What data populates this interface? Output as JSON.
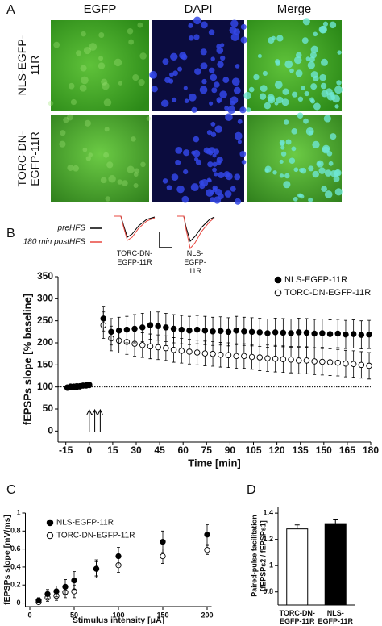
{
  "panels": [
    "A",
    "B",
    "C",
    "D"
  ],
  "image_panel": {
    "columns": [
      "EGFP",
      "DAPI",
      "Merge"
    ],
    "rows": [
      "NLS-EGFP-11R",
      "TORC-DN-EGFP-11R"
    ]
  },
  "chart_data": [
    {
      "type": "scatter",
      "xlabel": "Time [min]",
      "ylabel": "fEPSPs slope [% baseline]",
      "xlim": [
        -20,
        180
      ],
      "xticks": [
        -15,
        0,
        15,
        30,
        45,
        60,
        75,
        90,
        105,
        120,
        135,
        150,
        165,
        180
      ],
      "ylim": [
        -25,
        350
      ],
      "yticks": [
        0,
        50,
        100,
        150,
        200,
        250,
        300,
        350
      ],
      "legend": "upper right",
      "reference_line": 100,
      "hfs_times": [
        0,
        3.5,
        7
      ],
      "inset": {
        "trace_labels": [
          "preHFS",
          "180 min postHFS"
        ],
        "trace_colors": [
          "#000000",
          "#e8473f"
        ],
        "groups": [
          "TORC-DN-EGFP-11R",
          "NLS-EGFP-11R"
        ]
      },
      "x": [
        -14,
        -12,
        -10,
        -8,
        -6,
        -4,
        -2,
        0,
        9,
        14,
        19,
        24,
        29,
        34,
        39,
        44,
        49,
        54,
        59,
        64,
        69,
        74,
        79,
        84,
        89,
        94,
        99,
        104,
        109,
        114,
        119,
        124,
        129,
        134,
        139,
        144,
        149,
        154,
        159,
        164,
        169,
        174,
        179
      ],
      "series": [
        {
          "name": "NLS-EGFP-11R",
          "color": "#000000",
          "values": [
            98,
            100,
            101,
            100,
            102,
            103,
            104,
            105,
            255,
            225,
            228,
            230,
            232,
            235,
            240,
            238,
            235,
            232,
            230,
            228,
            230,
            228,
            226,
            227,
            225,
            228,
            226,
            225,
            224,
            222,
            224,
            223,
            222,
            224,
            223,
            221,
            222,
            220,
            221,
            219,
            220,
            218,
            219
          ],
          "errors": [
            4,
            4,
            4,
            4,
            4,
            4,
            5,
            5,
            28,
            30,
            30,
            30,
            32,
            32,
            32,
            32,
            32,
            32,
            32,
            32,
            32,
            32,
            32,
            32,
            32,
            32,
            32,
            32,
            32,
            32,
            32,
            32,
            32,
            32,
            32,
            32,
            32,
            32,
            32,
            32,
            32,
            32,
            32
          ]
        },
        {
          "name": "TORC-DN-EGFP-11R",
          "color": "#ffffff",
          "values": [
            99,
            101,
            100,
            102,
            101,
            103,
            103,
            104,
            240,
            210,
            205,
            202,
            198,
            195,
            192,
            190,
            188,
            184,
            182,
            180,
            178,
            176,
            175,
            173,
            172,
            170,
            170,
            168,
            167,
            165,
            164,
            163,
            162,
            160,
            160,
            158,
            157,
            156,
            155,
            153,
            152,
            150,
            148
          ],
          "errors": [
            4,
            4,
            4,
            4,
            4,
            4,
            5,
            5,
            30,
            28,
            28,
            28,
            28,
            28,
            28,
            28,
            28,
            28,
            28,
            28,
            28,
            28,
            28,
            28,
            28,
            28,
            28,
            28,
            30,
            30,
            30,
            30,
            30,
            30,
            30,
            30,
            30,
            30,
            30,
            30,
            30,
            30,
            30
          ]
        }
      ]
    },
    {
      "type": "scatter",
      "xlabel": "Stimulus intensity [μA]",
      "ylabel": "fEPSPs slope [mV/ms]",
      "xlim": [
        -5,
        205
      ],
      "xticks": [
        0,
        50,
        100,
        150,
        200
      ],
      "ylim": [
        -0.04,
        1.0
      ],
      "yticks": [
        0,
        0.2,
        0.4,
        0.6,
        0.8,
        1
      ],
      "legend": "upper left",
      "x": [
        10,
        20,
        30,
        40,
        50,
        75,
        100,
        150,
        200
      ],
      "series": [
        {
          "name": "NLS-EGFP-11R",
          "color": "#000000",
          "values": [
            0.03,
            0.1,
            0.13,
            0.18,
            0.25,
            0.38,
            0.52,
            0.68,
            0.76
          ],
          "errors": [
            0.03,
            0.05,
            0.06,
            0.08,
            0.1,
            0.1,
            0.1,
            0.12,
            0.11
          ]
        },
        {
          "name": "TORC-DN-EGFP-11R",
          "color": "#ffffff",
          "values": [
            0.01,
            0.06,
            0.08,
            0.12,
            0.13,
            0.38,
            0.42,
            0.52,
            0.59
          ],
          "errors": [
            0.02,
            0.04,
            0.05,
            0.06,
            0.07,
            0.08,
            0.08,
            0.08,
            0.05
          ]
        }
      ]
    },
    {
      "type": "bar",
      "ylabel": [
        "Paired-pulse facilitation",
        "[fEPSPs2 / fEPSPs1]"
      ],
      "ylim": [
        0.7,
        1.45
      ],
      "yticks": [
        0.8,
        1,
        1.2,
        1.4
      ],
      "categories": [
        "TORC-DN-EGFP-11R",
        "NLS-EGFP-11R"
      ],
      "values": [
        1.28,
        1.32
      ],
      "errors": [
        0.03,
        0.035
      ],
      "colors": [
        "#ffffff",
        "#000000"
      ]
    }
  ]
}
